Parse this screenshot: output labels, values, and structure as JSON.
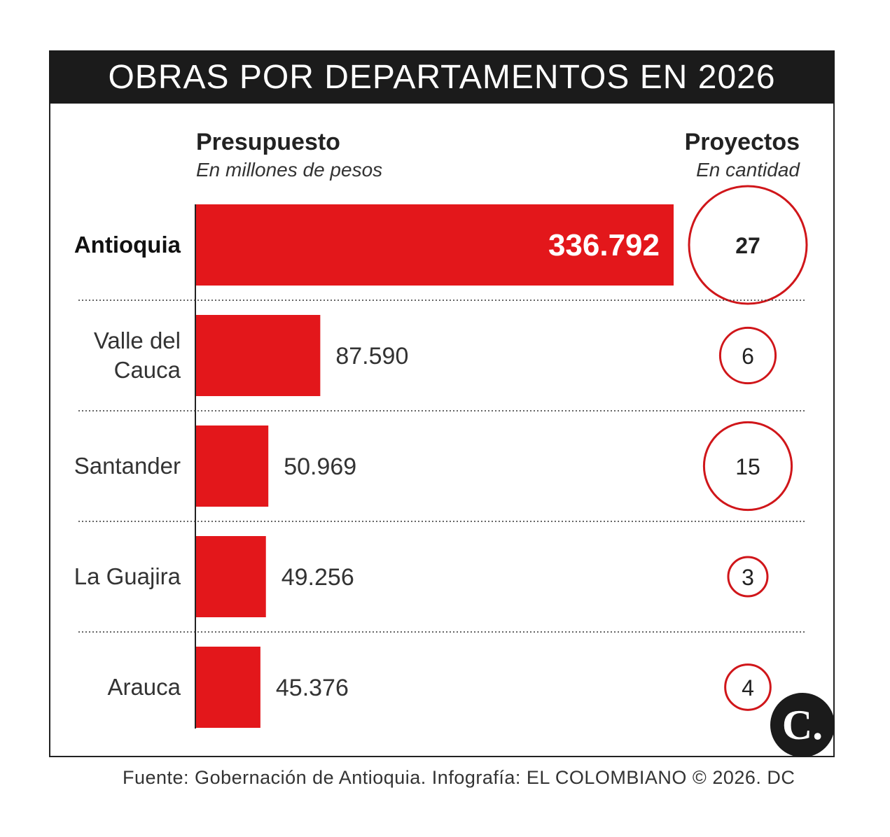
{
  "title": "OBRAS POR DEPARTAMENTOS EN 2026",
  "headers": {
    "budget_title": "Presupuesto",
    "budget_sub": "En millones de pesos",
    "projects_title": "Proyectos",
    "projects_sub": "En cantidad"
  },
  "chart_data": {
    "type": "bar",
    "orientation": "horizontal",
    "categories": [
      "Antioquia",
      "Valle del Cauca",
      "Santander",
      "La Guajira",
      "Arauca"
    ],
    "category_lines": [
      [
        "Antioquia"
      ],
      [
        "Valle del",
        "Cauca"
      ],
      [
        "Santander"
      ],
      [
        "La Guajira"
      ],
      [
        "Arauca"
      ]
    ],
    "series": [
      {
        "name": "Presupuesto",
        "values": [
          336792,
          87590,
          50969,
          49256,
          45376
        ],
        "labels": [
          "336.792",
          "87.590",
          "50.969",
          "49.256",
          "45.376"
        ]
      },
      {
        "name": "Proyectos",
        "values": [
          27,
          6,
          15,
          3,
          4
        ],
        "labels": [
          "27",
          "6",
          "15",
          "3",
          "4"
        ]
      }
    ],
    "highlight_index": 0,
    "colors": {
      "bar": "#e3171b",
      "circle": "#d0161a",
      "title_bg": "#1b1b1b"
    },
    "grid": false,
    "row_separators": "dotted"
  },
  "source": "Fuente: Gobernación de Antioquia. Infografía: EL COLOMBIANO © 2026. DC",
  "logo_text": "C."
}
